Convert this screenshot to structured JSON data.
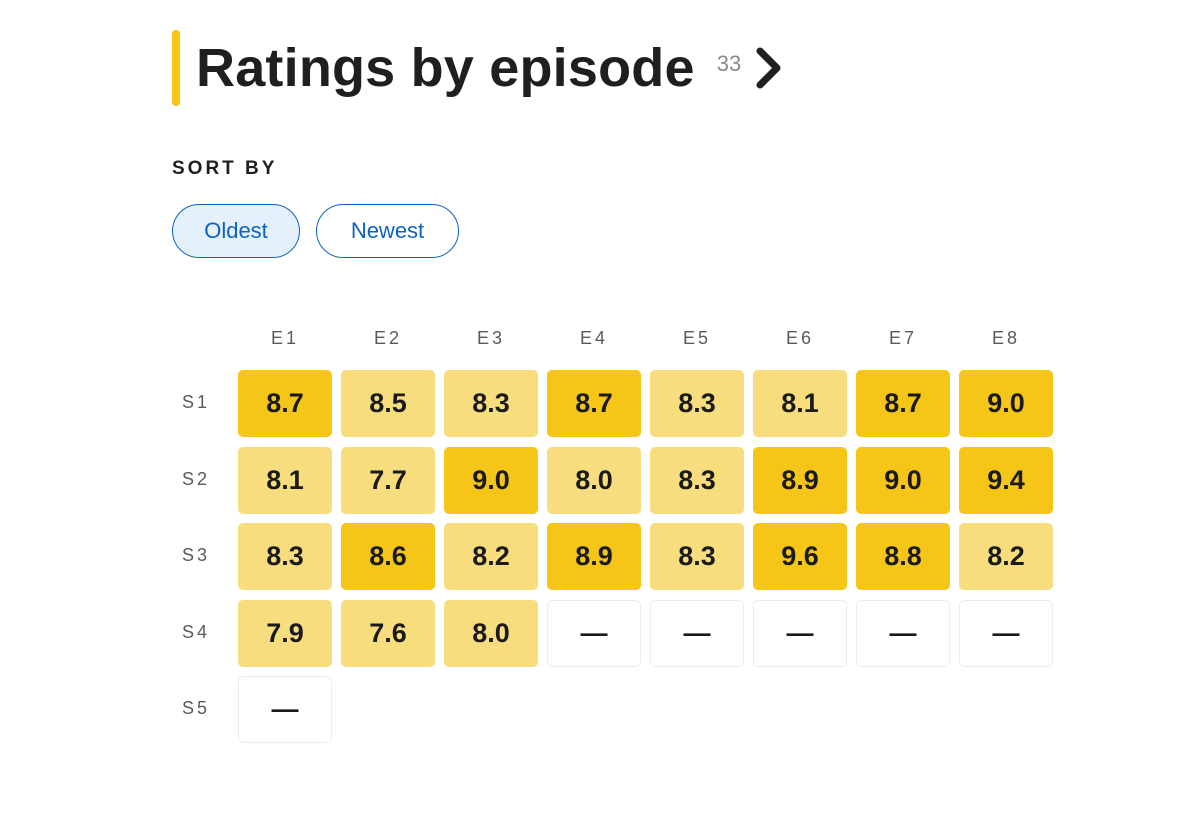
{
  "header": {
    "title": "Ratings by episode",
    "count": "33"
  },
  "sort": {
    "label": "SORT BY",
    "options": [
      "Oldest",
      "Newest"
    ],
    "selected": "Oldest"
  },
  "colors": {
    "accent": "#f5c518",
    "light": "#f8dd7f",
    "link": "#0e63be"
  },
  "episodes": [
    "E1",
    "E2",
    "E3",
    "E4",
    "E5",
    "E6",
    "E7",
    "E8"
  ],
  "seasons": [
    {
      "label": "S1",
      "ratings": [
        {
          "value": "8.7",
          "level": "hi"
        },
        {
          "value": "8.5",
          "level": "lo"
        },
        {
          "value": "8.3",
          "level": "lo"
        },
        {
          "value": "8.7",
          "level": "hi"
        },
        {
          "value": "8.3",
          "level": "lo"
        },
        {
          "value": "8.1",
          "level": "lo"
        },
        {
          "value": "8.7",
          "level": "hi"
        },
        {
          "value": "9.0",
          "level": "hi"
        }
      ]
    },
    {
      "label": "S2",
      "ratings": [
        {
          "value": "8.1",
          "level": "lo"
        },
        {
          "value": "7.7",
          "level": "lo"
        },
        {
          "value": "9.0",
          "level": "hi"
        },
        {
          "value": "8.0",
          "level": "lo"
        },
        {
          "value": "8.3",
          "level": "lo"
        },
        {
          "value": "8.9",
          "level": "hi"
        },
        {
          "value": "9.0",
          "level": "hi"
        },
        {
          "value": "9.4",
          "level": "hi"
        }
      ]
    },
    {
      "label": "S3",
      "ratings": [
        {
          "value": "8.3",
          "level": "lo"
        },
        {
          "value": "8.6",
          "level": "hi"
        },
        {
          "value": "8.2",
          "level": "lo"
        },
        {
          "value": "8.9",
          "level": "hi"
        },
        {
          "value": "8.3",
          "level": "lo"
        },
        {
          "value": "9.6",
          "level": "hi"
        },
        {
          "value": "8.8",
          "level": "hi"
        },
        {
          "value": "8.2",
          "level": "lo"
        }
      ]
    },
    {
      "label": "S4",
      "ratings": [
        {
          "value": "7.9",
          "level": "lo"
        },
        {
          "value": "7.6",
          "level": "lo"
        },
        {
          "value": "8.0",
          "level": "lo"
        },
        {
          "value": "—",
          "level": "empty"
        },
        {
          "value": "—",
          "level": "empty"
        },
        {
          "value": "—",
          "level": "empty"
        },
        {
          "value": "—",
          "level": "empty"
        },
        {
          "value": "—",
          "level": "empty"
        }
      ]
    },
    {
      "label": "S5",
      "ratings": [
        {
          "value": "—",
          "level": "empty"
        }
      ]
    }
  ]
}
